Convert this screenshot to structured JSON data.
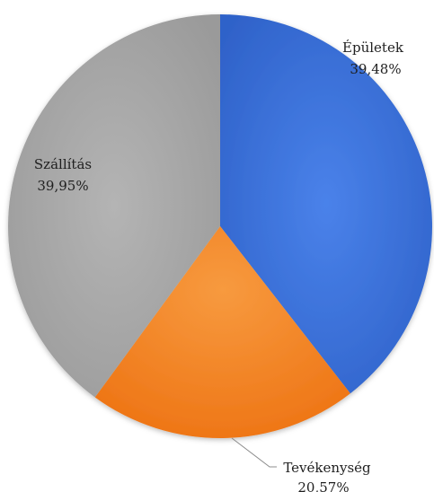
{
  "chart_data": {
    "type": "pie",
    "title": "",
    "slices": [
      {
        "label": "Épületek",
        "value": 39.48,
        "value_label": "39,48%",
        "color": "#3a6fd8"
      },
      {
        "label": "Tevékenység",
        "value": 20.57,
        "value_label": "20,57%",
        "color": "#f4801f"
      },
      {
        "label": "Szállítás",
        "value": 39.95,
        "value_label": "39,95%",
        "color": "#a6a6a6"
      }
    ],
    "start_angle": "12 o'clock",
    "direction": "clockwise",
    "legend": "none",
    "data_labels": "category and percentage"
  }
}
